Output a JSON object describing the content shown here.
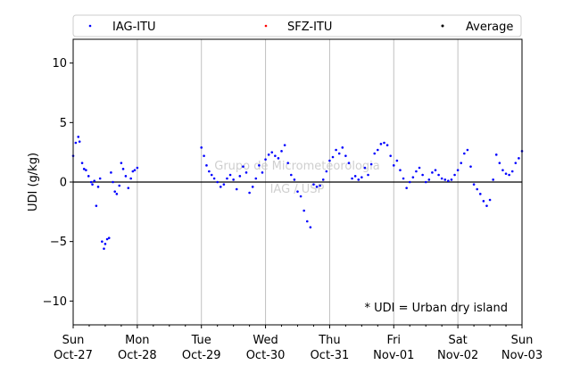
{
  "chart_data": {
    "type": "scatter",
    "ylabel": "UDI (g/kg)",
    "ylim": [
      -12,
      12
    ],
    "yticks": [
      -10,
      -5,
      0,
      5,
      10
    ],
    "xlim": [
      0,
      7
    ],
    "xticks": [
      {
        "pos": 0,
        "day": "Sun",
        "date": "Oct-27"
      },
      {
        "pos": 1,
        "day": "Mon",
        "date": "Oct-28"
      },
      {
        "pos": 2,
        "day": "Tue",
        "date": "Oct-29"
      },
      {
        "pos": 3,
        "day": "Wed",
        "date": "Oct-30"
      },
      {
        "pos": 4,
        "day": "Thu",
        "date": "Oct-31"
      },
      {
        "pos": 5,
        "day": "Fri",
        "date": "Nov-01"
      },
      {
        "pos": 6,
        "day": "Sat",
        "date": "Nov-02"
      },
      {
        "pos": 7,
        "day": "Sun",
        "date": "Nov-03"
      }
    ],
    "grid": "vertical",
    "zero_line": true,
    "legend": {
      "placement": "top"
    },
    "annotation": "* UDI = Urban dry island",
    "watermark": [
      "Grupo de Micrometeorologia",
      "IAG / USP"
    ],
    "series": [
      {
        "name": "IAG-ITU",
        "color": "#0000ff",
        "x": [
          0,
          0.04,
          0.08,
          0.1,
          0.14,
          0.17,
          0.2,
          0.24,
          0.28,
          0.3,
          0.33,
          0.36,
          0.39,
          0.42,
          0.45,
          0.48,
          0.5,
          0.53,
          0.56,
          0.59,
          0.62,
          0.65,
          0.68,
          0.72,
          0.75,
          0.78,
          0.82,
          0.86,
          0.9,
          0.93,
          0.96,
          1.0,
          2.0,
          2.04,
          2.08,
          2.12,
          2.16,
          2.2,
          2.25,
          2.3,
          2.35,
          2.4,
          2.45,
          2.5,
          2.55,
          2.6,
          2.65,
          2.7,
          2.75,
          2.8,
          2.85,
          2.9,
          2.95,
          3.0,
          3.05,
          3.1,
          3.15,
          3.2,
          3.25,
          3.3,
          3.35,
          3.4,
          3.45,
          3.5,
          3.55,
          3.6,
          3.65,
          3.7,
          3.75,
          3.8,
          3.85,
          3.9,
          3.95,
          4.0,
          4.05,
          4.1,
          4.15,
          4.2,
          4.25,
          4.3,
          4.35,
          4.4,
          4.45,
          4.5,
          4.55,
          4.6,
          4.65,
          4.7,
          4.75,
          4.8,
          4.85,
          4.9,
          4.95,
          5.0,
          5.05,
          5.1,
          5.15,
          5.2,
          5.25,
          5.3,
          5.35,
          5.4,
          5.45,
          5.5,
          5.55,
          5.6,
          5.65,
          5.7,
          5.75,
          5.8,
          5.85,
          5.9,
          5.95,
          6.0,
          6.05,
          6.1,
          6.15,
          6.2,
          6.25,
          6.3,
          6.35,
          6.4,
          6.45,
          6.5,
          6.55,
          6.6,
          6.65,
          6.7,
          6.75,
          6.8,
          6.85,
          6.9,
          6.95,
          7.0
        ],
        "y": [
          2.2,
          3.3,
          3.8,
          3.4,
          1.6,
          1.1,
          1.0,
          0.5,
          0.0,
          -0.2,
          0.1,
          -2.0,
          -0.4,
          0.3,
          -5.0,
          -5.6,
          -5.2,
          -4.8,
          -4.7,
          0.8,
          0.0,
          -0.8,
          -1.0,
          -0.3,
          1.6,
          1.1,
          0.5,
          -0.5,
          0.3,
          0.9,
          1.0,
          1.2,
          2.9,
          2.2,
          1.4,
          0.9,
          0.6,
          0.3,
          0.0,
          -0.4,
          -0.2,
          0.3,
          0.6,
          0.2,
          -0.6,
          0.5,
          1.3,
          0.8,
          -0.9,
          -0.4,
          0.3,
          1.4,
          0.8,
          1.9,
          2.3,
          2.5,
          2.2,
          2.0,
          2.6,
          3.1,
          1.6,
          0.6,
          0.2,
          -0.8,
          -1.2,
          -2.4,
          -3.3,
          -3.8,
          -0.2,
          -0.4,
          -0.3,
          0.2,
          0.9,
          1.8,
          2.1,
          2.7,
          2.4,
          2.9,
          2.2,
          1.6,
          0.3,
          0.5,
          0.2,
          0.4,
          1.2,
          0.6,
          1.5,
          2.4,
          2.7,
          3.2,
          3.3,
          3.1,
          2.2,
          1.4,
          1.8,
          1.0,
          0.3,
          -0.5,
          0.0,
          0.4,
          0.9,
          1.2,
          0.6,
          0.0,
          0.2,
          0.8,
          1.0,
          0.6,
          0.3,
          0.2,
          0.1,
          0.2,
          0.6,
          1.0,
          1.6,
          2.4,
          2.7,
          1.3,
          -0.2,
          -0.6,
          -1.0,
          -1.6,
          -2.0,
          -1.5,
          0.2,
          2.3,
          1.6,
          1.0,
          0.7,
          0.6,
          0.9,
          1.6,
          2.0,
          2.6
        ]
      },
      {
        "name": "SFZ-ITU",
        "color": "#ff0000",
        "x": [],
        "y": []
      },
      {
        "name": "Average",
        "color": "#000000",
        "x": [],
        "y": []
      }
    ]
  }
}
